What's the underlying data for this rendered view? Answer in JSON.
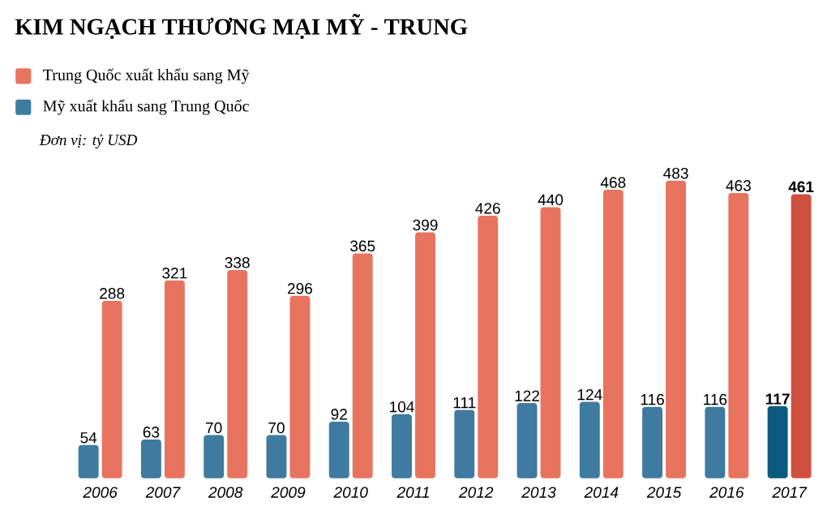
{
  "chart_data": {
    "type": "bar",
    "title": "KIM NGẠCH THƯƠNG MẠI MỸ - TRUNG",
    "subtitle": "Đơn vị: tỷ USD",
    "legend": "top left",
    "categories": [
      "2006",
      "2007",
      "2008",
      "2009",
      "2010",
      "2011",
      "2012",
      "2013",
      "2014",
      "2015",
      "2016",
      "2017"
    ],
    "series": [
      {
        "name": "Trung Quốc xuất khẩu sang Mỹ",
        "color": "#e8745f",
        "colors": [
          "#e8745f",
          "#e8745f",
          "#e8745f",
          "#e8745f",
          "#e8745f",
          "#e8745f",
          "#e8745f",
          "#e8745f",
          "#e8745f",
          "#e8745f",
          "#e8745f",
          "#d0503f"
        ],
        "values": [
          288,
          321,
          338,
          296,
          365,
          399,
          426,
          440,
          468,
          483,
          463,
          461
        ],
        "value_labels": [
          "288",
          "321",
          "338",
          "296",
          "365",
          "399",
          "426",
          "440",
          "468",
          "483",
          "463",
          "**461**"
        ]
      },
      {
        "name": "Mỹ xuất khẩu sang Trung Quốc",
        "color": "#3f7aa0",
        "colors": [
          "#3f7aa0",
          "#3f7aa0",
          "#3f7aa0",
          "#3f7aa0",
          "#3f7aa0",
          "#3f7aa0",
          "#3f7aa0",
          "#3f7aa0",
          "#3f7aa0",
          "#3f7aa0",
          "#3f7aa0",
          "#0d5a80"
        ],
        "values": [
          54,
          63,
          70,
          70,
          92,
          104,
          111,
          122,
          124,
          116,
          116,
          117
        ],
        "value_labels": [
          "54",
          "63",
          "70",
          "70",
          "92",
          "104",
          "111",
          "122",
          "124",
          "116",
          "116",
          "**117**"
        ]
      }
    ]
  }
}
